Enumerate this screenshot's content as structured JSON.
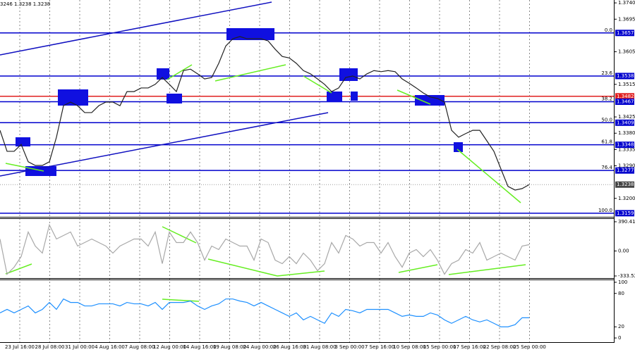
{
  "header": "3246 1.3238 1.3238",
  "time_labels": [
    "23 Jul 16:00",
    "28 Jul 08:00",
    "31 Jul 00:00",
    "4 Aug 16:00",
    "7 Aug 08:00",
    "12 Aug 00:00",
    "14 Aug 16:00",
    "19 Aug 08:00",
    "24 Aug 00:00",
    "26 Aug 16:00",
    "31 Aug 08:00",
    "3 Sep 00:00",
    "7 Sep 16:00",
    "10 Sep 08:00",
    "15 Sep 00:00",
    "17 Sep 16:00",
    "22 Sep 08:00",
    "25 Sep 00:00"
  ],
  "chart_data": [
    {
      "type": "line",
      "color": "#222222",
      "values": [
        1.3388,
        1.333,
        1.333,
        1.3349,
        1.3301,
        1.3291,
        1.3291,
        1.3301,
        1.3369,
        1.3456,
        1.3466,
        1.3456,
        1.3437,
        1.3437,
        1.3456,
        1.3466,
        1.3466,
        1.3456,
        1.3495,
        1.3495,
        1.3505,
        1.3505,
        1.3515,
        1.3534,
        1.3515,
        1.3495,
        1.3553,
        1.3557,
        1.3544,
        1.353,
        1.3534,
        1.3573,
        1.3621,
        1.3641,
        1.3647,
        1.3641,
        1.3641,
        1.3641,
        1.3635,
        1.3612,
        1.3592,
        1.3588,
        1.3573,
        1.3553,
        1.3544,
        1.353,
        1.3515,
        1.3495,
        1.3505,
        1.3534,
        1.3538,
        1.353,
        1.3544,
        1.3553,
        1.355,
        1.3553,
        1.355,
        1.353,
        1.3518,
        1.3505,
        1.3491,
        1.348,
        1.3476,
        1.3466,
        1.3388,
        1.3369,
        1.3379,
        1.3388,
        1.3388,
        1.3359,
        1.333,
        1.3281,
        1.3233,
        1.3223,
        1.3227,
        1.3238
      ],
      "ylim": [
        1.3149,
        1.3748
      ],
      "yticks": [
        {
          "value": 1.374,
          "label": "1.3740"
        },
        1.3695,
        1.3605,
        1.3515,
        1.3425,
        {
          "value": 1.338,
          "label": "1.3380"
        },
        1.3335,
        {
          "value": 1.329,
          "label": "1.3290"
        },
        {
          "value": 1.32,
          "label": "1.3200"
        }
      ],
      "levels": [
        {
          "value": 1.3657,
          "color": "#0000cd",
          "fib": "0.0"
        },
        {
          "value": 1.3538,
          "color": "#0000cd",
          "fib": "23.6"
        },
        {
          "value": 1.3482,
          "color": "#e02020"
        },
        {
          "value": 1.3467,
          "color": "#0000cd",
          "fib": "38.2"
        },
        {
          "value": 1.3409,
          "color": "#0000cd",
          "fib": "50.0"
        },
        {
          "value": 1.3348,
          "color": "#0000cd",
          "fib": "61.8"
        },
        {
          "value": 1.3277,
          "color": "#0000cd",
          "fib": "76.4"
        },
        {
          "value": 1.3238,
          "color": "#9a9a9a"
        },
        {
          "value": 1.3159,
          "color": "#0000cd",
          "fib": "100.0"
        }
      ]
    },
    {
      "type": "line",
      "color": "#a8a8a8",
      "values": [
        160,
        -310,
        -216,
        -75,
        254,
        66,
        -28,
        348,
        160,
        207,
        254,
        66,
        113,
        160,
        113,
        66,
        -28,
        66,
        113,
        160,
        160,
        66,
        254,
        -169,
        254,
        113,
        113,
        254,
        113,
        -122,
        66,
        19,
        160,
        113,
        66,
        66,
        -122,
        160,
        113,
        -122,
        -169,
        -75,
        -169,
        -28,
        -122,
        -263,
        -169,
        113,
        -28,
        207,
        160,
        66,
        113,
        113,
        -28,
        113,
        -75,
        -216,
        -28,
        19,
        -75,
        19,
        -122,
        -310,
        -169,
        -122,
        19,
        -28,
        113,
        -122,
        -75,
        -28,
        -75,
        -122,
        66,
        85
      ],
      "ylim": [
        -361.7,
        437.4
      ],
      "yticks": [
        390.4163,
        {
          "value": 0,
          "label": "0.00"
        },
        -333.522
      ]
    },
    {
      "type": "line",
      "color": "#1e90ff",
      "values": [
        45,
        51.3,
        45,
        51.3,
        57.5,
        45,
        51.3,
        63.8,
        51.3,
        70,
        63.8,
        63.8,
        57.5,
        57.5,
        61.3,
        61.3,
        61.3,
        57.5,
        63.8,
        61.3,
        61.3,
        57.5,
        63.8,
        51.3,
        63.8,
        63.8,
        63.8,
        66.3,
        57.5,
        51.3,
        57.5,
        61.3,
        70,
        70,
        66.3,
        63.8,
        57.5,
        63.8,
        57.5,
        51.3,
        45,
        38.8,
        45,
        32.5,
        38.8,
        32.5,
        26.3,
        45,
        38.8,
        51.3,
        48.8,
        45,
        51.3,
        51.3,
        51.3,
        51.3,
        45,
        38.8,
        41.3,
        38.8,
        38.8,
        45,
        41.3,
        32.5,
        26.3,
        32.5,
        38.8,
        32.5,
        28.8,
        32.5,
        26.3,
        20,
        20,
        23.8,
        36.3,
        36.3
      ],
      "ylim": [
        -7.5,
        105
      ],
      "yticks": [
        100,
        80,
        20,
        0
      ]
    }
  ]
}
